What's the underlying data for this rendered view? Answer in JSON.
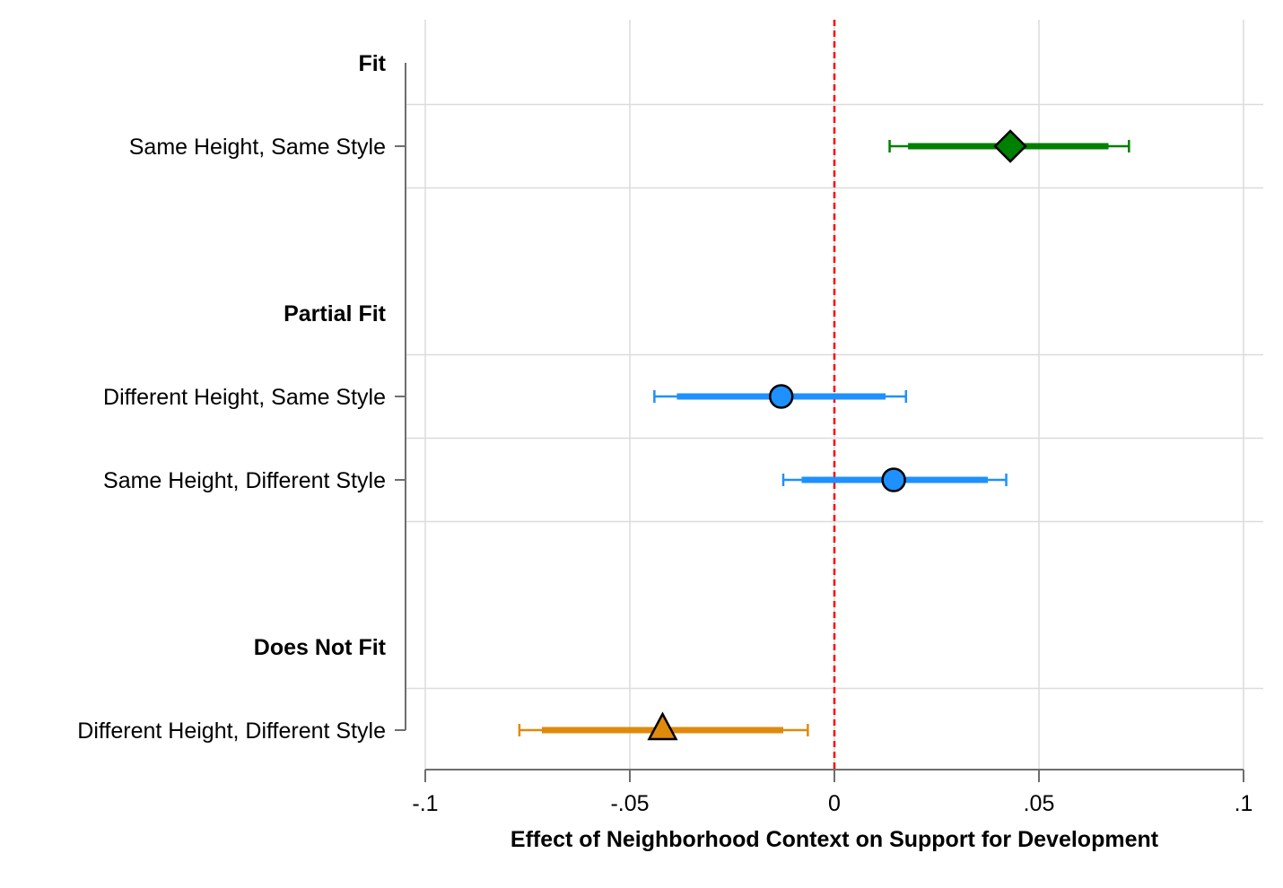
{
  "chart_data": {
    "type": "scatter",
    "subtype": "coefficient-plot",
    "xlabel": "Effect of Neighborhood Context on Support for Development",
    "xlim": [
      -0.1,
      0.1
    ],
    "x_ticks": [
      {
        "value": -0.1,
        "label": "-.1"
      },
      {
        "value": -0.05,
        "label": "-.05"
      },
      {
        "value": 0,
        "label": "0"
      },
      {
        "value": 0.05,
        "label": ".05"
      },
      {
        "value": 0.1,
        "label": ".1"
      }
    ],
    "reference_line": {
      "x": 0,
      "color": "#ff0000",
      "style": "dashed"
    },
    "grid": true,
    "groups": [
      {
        "label": "Fit",
        "items": [
          {
            "label": "Same Height, Same Style",
            "estimate": 0.043,
            "ci90": [
              0.018,
              0.067
            ],
            "ci95": [
              0.0135,
              0.072
            ],
            "marker": "diamond",
            "color": "#008000"
          }
        ]
      },
      {
        "label": "Partial Fit",
        "items": [
          {
            "label": "Different Height, Same Style",
            "estimate": -0.013,
            "ci90": [
              -0.0385,
              0.0125
            ],
            "ci95": [
              -0.044,
              0.0175
            ],
            "marker": "circle",
            "color": "#1e90ff"
          },
          {
            "label": "Same Height, Different Style",
            "estimate": 0.0145,
            "ci90": [
              -0.008,
              0.0375
            ],
            "ci95": [
              -0.0125,
              0.042
            ],
            "marker": "circle",
            "color": "#1e90ff"
          }
        ]
      },
      {
        "label": "Does Not Fit",
        "items": [
          {
            "label": "Different Height, Different Style",
            "estimate": -0.042,
            "ci90": [
              -0.0715,
              -0.0125
            ],
            "ci95": [
              -0.077,
              -0.0065
            ],
            "marker": "triangle",
            "color": "#e08a0b"
          }
        ]
      }
    ]
  }
}
